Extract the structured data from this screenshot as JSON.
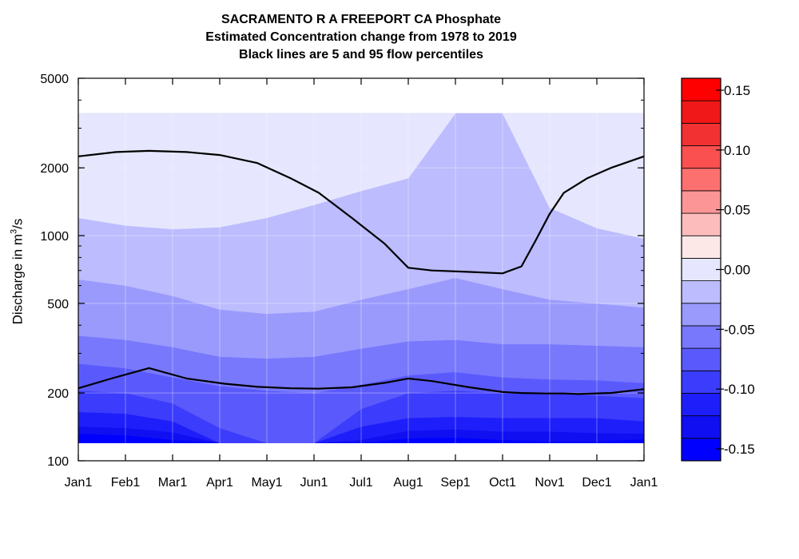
{
  "chart_data": {
    "type": "heatmap",
    "title_lines": [
      "SACRAMENTO R A FREEPORT CA  Phosphate",
      "Estimated Concentration change from 1978 to 2019",
      "Black lines are 5 and 95 flow percentiles"
    ],
    "ylabel_prefix": "Discharge in m",
    "ylabel_sup": "3",
    "ylabel_suffix": "/s",
    "y_scale": "log",
    "ylim": [
      100,
      5000
    ],
    "yticks": [
      100,
      200,
      500,
      1000,
      2000,
      5000
    ],
    "ytick_labels": [
      "100",
      "200",
      "500",
      "1000",
      "2000",
      "5000"
    ],
    "xlim": [
      0,
      12
    ],
    "xticks": [
      0,
      1,
      2,
      3,
      4,
      5,
      6,
      7,
      8,
      9,
      10,
      11,
      12
    ],
    "xtick_labels": [
      "Jan1",
      "Feb1",
      "Mar1",
      "Apr1",
      "May1",
      "Jun1",
      "Jul1",
      "Aug1",
      "Sep1",
      "Oct1",
      "Nov1",
      "Dec1",
      "Jan1"
    ],
    "grid": true,
    "contour_bands": {
      "x": [
        0,
        1,
        2,
        3,
        4,
        5,
        6,
        7,
        8,
        9,
        10,
        11,
        12
      ],
      "y_min": 120,
      "y_max": 3500,
      "colors": [
        "#0000ff",
        "#0f0ff2",
        "#1e1efa",
        "#3c3cfc",
        "#5a5afc",
        "#7878fd",
        "#9a9afd",
        "#bcbcfe",
        "#e6e6fe"
      ],
      "boundaries": [
        [
          132,
          130,
          124,
          120,
          120,
          120,
          120,
          126,
          127,
          124,
          122,
          122,
          125
        ],
        [
          142,
          140,
          134,
          120,
          120,
          120,
          124,
          136,
          138,
          135,
          135,
          133,
          132
        ],
        [
          165,
          162,
          150,
          120,
          120,
          120,
          142,
          155,
          157,
          155,
          155,
          155,
          150
        ],
        [
          205,
          200,
          180,
          140,
          120,
          120,
          170,
          200,
          205,
          200,
          200,
          195,
          190
        ],
        [
          270,
          258,
          235,
          215,
          205,
          200,
          218,
          240,
          248,
          235,
          230,
          228,
          222
        ],
        [
          360,
          345,
          320,
          290,
          285,
          290,
          315,
          340,
          345,
          330,
          330,
          325,
          320
        ],
        [
          640,
          600,
          540,
          470,
          450,
          460,
          520,
          580,
          650,
          580,
          520,
          500,
          480
        ],
        [
          1200,
          1110,
          1070,
          1090,
          1200,
          1370,
          1580,
          1800,
          3500,
          3500,
          1330,
          1080,
          970
        ]
      ]
    },
    "flow_percentiles": [
      {
        "x": [
          0,
          0.7,
          1.5,
          2.3,
          3.1,
          3.8,
          4.5,
          5.1,
          5.8,
          6.5,
          7.0,
          7.5,
          8.3,
          9.0,
          9.4,
          9.9,
          10.3,
          10.6,
          11.3,
          12.0
        ],
        "values": [
          210,
          232,
          258,
          232,
          220,
          213,
          210,
          209,
          212,
          222,
          232,
          226,
          212,
          202,
          200,
          199,
          199,
          198,
          200,
          208
        ]
      },
      {
        "x": [
          0,
          0.8,
          1.5,
          2.3,
          3.0,
          3.8,
          4.5,
          5.1,
          5.8,
          6.5,
          7.0,
          7.5,
          8.3,
          9.0,
          9.4,
          9.7,
          10.0,
          10.3,
          10.8,
          11.3,
          12.0
        ],
        "values": [
          2250,
          2350,
          2380,
          2350,
          2280,
          2100,
          1800,
          1550,
          1200,
          920,
          720,
          700,
          690,
          680,
          730,
          950,
          1250,
          1550,
          1800,
          2000,
          2250
        ]
      }
    ],
    "colorbar": {
      "vmin": -0.16,
      "vmax": 0.16,
      "ticks": [
        -0.15,
        -0.1,
        -0.05,
        0.0,
        0.05,
        0.1,
        0.15
      ],
      "tick_labels": [
        "-0.15",
        "-0.10",
        "-0.05",
        "0.00",
        "0.05",
        "0.10",
        "0.15"
      ],
      "band_colors_bottom_to_top": [
        "#0000ff",
        "#0f0ff2",
        "#1e1efa",
        "#3c3cfc",
        "#5a5afc",
        "#7878fd",
        "#9a9afd",
        "#bcbcfe",
        "#e6e6fe",
        "#fde8e8",
        "#fdbcbc",
        "#fc9696",
        "#fc7070",
        "#fa5050",
        "#f23232",
        "#f01818",
        "#ff0000"
      ]
    }
  }
}
